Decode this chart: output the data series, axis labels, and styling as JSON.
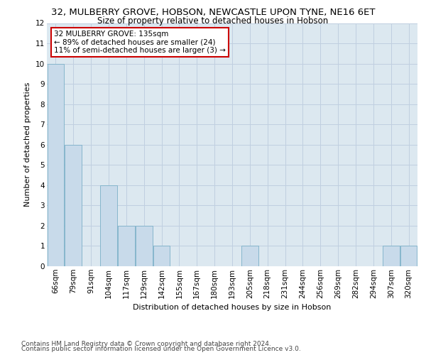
{
  "title": "32, MULBERRY GROVE, HOBSON, NEWCASTLE UPON TYNE, NE16 6ET",
  "subtitle": "Size of property relative to detached houses in Hobson",
  "xlabel": "Distribution of detached houses by size in Hobson",
  "ylabel": "Number of detached properties",
  "categories": [
    "66sqm",
    "79sqm",
    "91sqm",
    "104sqm",
    "117sqm",
    "129sqm",
    "142sqm",
    "155sqm",
    "167sqm",
    "180sqm",
    "193sqm",
    "205sqm",
    "218sqm",
    "231sqm",
    "244sqm",
    "256sqm",
    "269sqm",
    "282sqm",
    "294sqm",
    "307sqm",
    "320sqm"
  ],
  "values": [
    10,
    6,
    0,
    4,
    2,
    2,
    1,
    0,
    0,
    0,
    0,
    1,
    0,
    0,
    0,
    0,
    0,
    0,
    0,
    1,
    1
  ],
  "bar_color": "#c8daea",
  "bar_edge_color": "#7aafc8",
  "ylim": [
    0,
    12
  ],
  "yticks": [
    0,
    1,
    2,
    3,
    4,
    5,
    6,
    7,
    8,
    9,
    10,
    11,
    12
  ],
  "annotation_text": "32 MULBERRY GROVE: 135sqm\n← 89% of detached houses are smaller (24)\n11% of semi-detached houses are larger (3) →",
  "annotation_box_color": "#ffffff",
  "annotation_box_edge": "#cc0000",
  "footer_line1": "Contains HM Land Registry data © Crown copyright and database right 2024.",
  "footer_line2": "Contains public sector information licensed under the Open Government Licence v3.0.",
  "bg_color": "#ffffff",
  "plot_bg_color": "#dce8f0",
  "grid_color": "#c0cfe0",
  "title_fontsize": 9.5,
  "subtitle_fontsize": 8.5,
  "xlabel_fontsize": 8,
  "ylabel_fontsize": 8,
  "tick_fontsize": 7.5,
  "annotation_fontsize": 7.5,
  "footer_fontsize": 6.5
}
